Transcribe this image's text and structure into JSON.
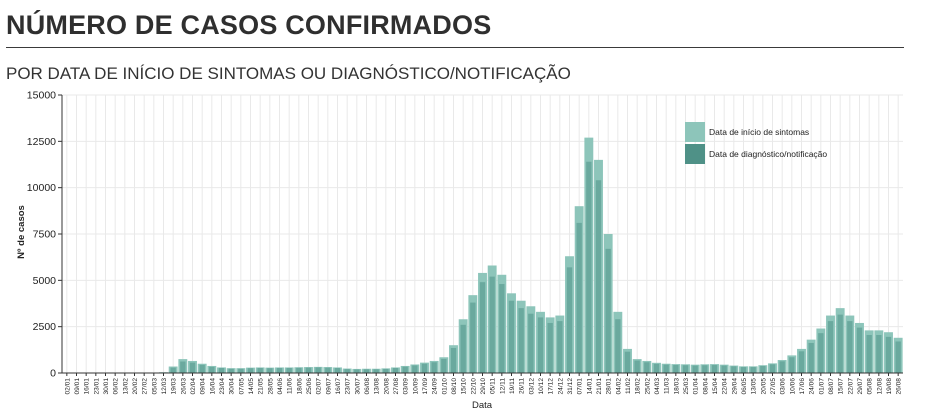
{
  "page": {
    "title": "NÚMERO DE CASOS CONFIRMADOS",
    "subtitle": "POR DATA DE INÍCIO DE SINTOMAS OU DIAGNÓSTICO/NOTIFICAÇÃO"
  },
  "colors": {
    "series1": "#8dc5ba",
    "series2": "#4f9187",
    "grid": "#e9e9e9",
    "axis": "#333333"
  },
  "chart_data": {
    "type": "bar",
    "title": "",
    "xlabel": "Data",
    "ylabel": "Nº de casos",
    "ylim": [
      0,
      15000
    ],
    "yticks": [
      0,
      2500,
      5000,
      7500,
      10000,
      12500,
      15000
    ],
    "ytick_labels": [
      "0",
      "2500",
      "5000",
      "7500",
      "10000",
      "12500",
      "15000"
    ],
    "grid": true,
    "legend_position": "top-right",
    "xtick_labels": [
      "02/01",
      "09/01",
      "16/01",
      "23/01",
      "30/01",
      "06/02",
      "13/02",
      "20/02",
      "27/02",
      "05/03",
      "12/03",
      "19/03",
      "26/03",
      "02/04",
      "09/04",
      "16/04",
      "23/04",
      "30/04",
      "07/05",
      "14/05",
      "21/05",
      "28/05",
      "04/06",
      "11/06",
      "18/06",
      "25/06",
      "02/07",
      "09/07",
      "16/07",
      "23/07",
      "30/07",
      "06/08",
      "13/08",
      "20/08",
      "27/08",
      "03/09",
      "10/09",
      "17/09",
      "24/09",
      "01/10",
      "08/10",
      "15/10",
      "22/10",
      "29/10",
      "05/11",
      "12/11",
      "19/11",
      "26/11",
      "03/12",
      "10/12",
      "17/12",
      "24/12",
      "31/12",
      "07/01",
      "14/01",
      "21/01",
      "28/01",
      "04/02",
      "11/02",
      "18/02",
      "25/02",
      "04/03",
      "11/03",
      "18/03",
      "25/03",
      "01/04",
      "08/04",
      "15/04",
      "22/04",
      "29/04",
      "06/05",
      "13/05",
      "20/05",
      "27/05",
      "03/06",
      "10/06",
      "17/06",
      "24/06",
      "01/07",
      "08/07",
      "15/07",
      "22/07",
      "29/07",
      "05/08",
      "12/08",
      "19/08",
      "26/08"
    ],
    "series": [
      {
        "name": "Data de início de sintomas",
        "values": [
          0,
          0,
          0,
          0,
          0,
          0,
          0,
          0,
          0,
          0,
          40,
          350,
          750,
          650,
          500,
          380,
          300,
          260,
          260,
          290,
          300,
          290,
          300,
          300,
          310,
          320,
          330,
          320,
          300,
          240,
          220,
          230,
          230,
          250,
          300,
          380,
          460,
          560,
          650,
          850,
          1500,
          2900,
          4200,
          5400,
          5800,
          5300,
          4300,
          3900,
          3600,
          3300,
          3000,
          3100,
          6300,
          9000,
          12700,
          11500,
          7500,
          3300,
          1300,
          750,
          650,
          550,
          500,
          480,
          470,
          450,
          470,
          480,
          450,
          400,
          360,
          360,
          420,
          520,
          700,
          950,
          1300,
          1800,
          2400,
          3100,
          3500,
          3100,
          2700,
          2300,
          2300,
          2200,
          1900
        ]
      },
      {
        "name": "Data de diagnóstico/notificação",
        "values": [
          0,
          0,
          0,
          0,
          0,
          0,
          0,
          0,
          0,
          0,
          30,
          290,
          620,
          560,
          440,
          330,
          270,
          230,
          230,
          260,
          270,
          260,
          270,
          270,
          280,
          290,
          300,
          290,
          270,
          210,
          190,
          200,
          200,
          220,
          270,
          340,
          410,
          500,
          580,
          760,
          1350,
          2600,
          3800,
          4900,
          5200,
          4800,
          3900,
          3500,
          3200,
          3000,
          2700,
          2800,
          5700,
          8100,
          11400,
          10400,
          6700,
          2900,
          1150,
          670,
          580,
          490,
          450,
          430,
          420,
          400,
          420,
          430,
          400,
          360,
          320,
          320,
          380,
          470,
          630,
          850,
          1170,
          1620,
          2150,
          2800,
          3150,
          2800,
          2450,
          2050,
          2050,
          1950,
          1700
        ]
      }
    ]
  }
}
